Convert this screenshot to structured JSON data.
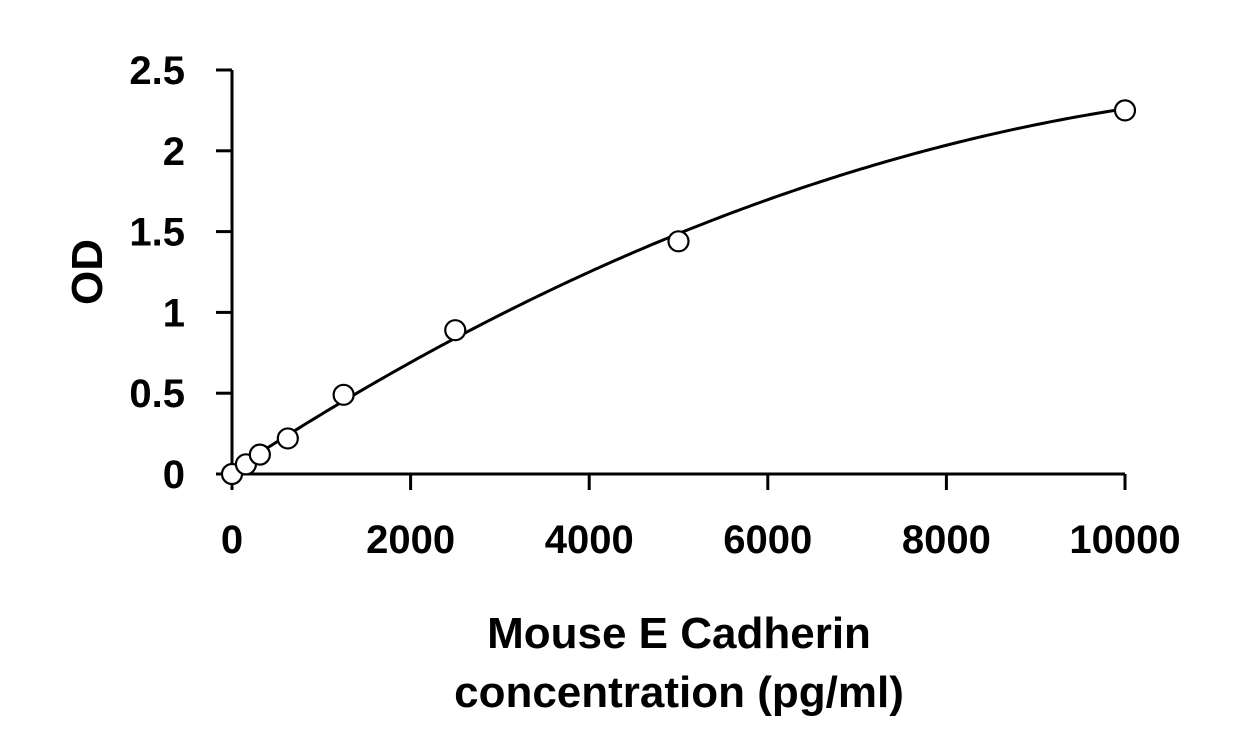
{
  "chart_data": {
    "type": "scatter",
    "title": "",
    "xlabel_lines": [
      "Mouse E Cadherin",
      "concentration (pg/ml)"
    ],
    "ylabel": "OD",
    "xlim": [
      0,
      10000
    ],
    "ylim": [
      0,
      2.5
    ],
    "x_ticks": [
      0,
      2000,
      4000,
      6000,
      8000,
      10000
    ],
    "x_tick_labels": [
      "0",
      "2000",
      "4000",
      "6000",
      "8000",
      "10000"
    ],
    "y_ticks": [
      0,
      0.5,
      1,
      1.5,
      2,
      2.5
    ],
    "y_tick_labels": [
      "0",
      "0.5",
      "1",
      "1.5",
      "2",
      "2.5"
    ],
    "grid": false,
    "legend": "none",
    "points": {
      "x": [
        0,
        156,
        312,
        625,
        1250,
        2500,
        5000,
        10000
      ],
      "y": [
        0.0,
        0.06,
        0.12,
        0.22,
        0.49,
        0.89,
        1.44,
        2.25
      ]
    },
    "trendline": {
      "type": "polynomial",
      "order": 2,
      "coefficients": [
        0.02,
        0.000363,
        -1.39e-08
      ]
    }
  }
}
